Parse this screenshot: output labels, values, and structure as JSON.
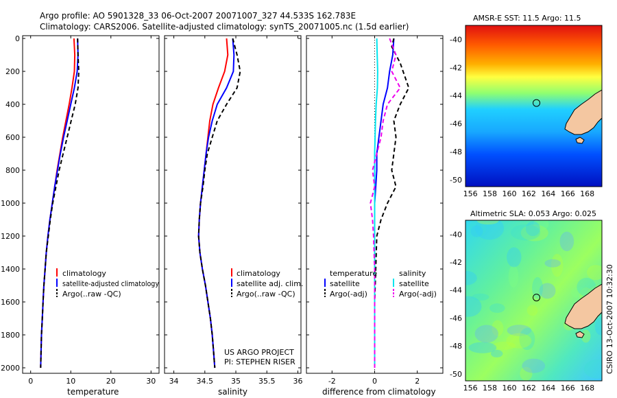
{
  "title_line1": "Argo profile: AO 5901328_33 06-Oct-2007 20071007_327 44.533S 162.783E",
  "title_line2": "Climatology: CARS2006. Satellite-adjusted climatology: synTS_20071005.nc (1.5d earlier)",
  "side_text": "CSIRO 13-Oct-2007 10:32:30",
  "project_line1": "US ARGO PROJECT",
  "project_line2": "PI: STEPHEN RISER",
  "colors": {
    "climatology": "#ff0000",
    "satellite": "#0000ff",
    "argo": "#000000",
    "sat_diff_sal": "#00e5ee",
    "argo_diff_sal": "#ee00ee"
  },
  "chart_data": [
    {
      "type": "line",
      "xlabel": "temperature",
      "ylim": [
        2000,
        0
      ],
      "xlim": [
        -2,
        32
      ],
      "xticks": [
        0,
        10,
        20,
        30
      ],
      "yticks": [
        0,
        200,
        400,
        600,
        800,
        1000,
        1200,
        1400,
        1600,
        1800,
        2000
      ],
      "legend": [
        "climatology",
        "satellite-adjusted climatology",
        "Argo(..raw -QC)"
      ],
      "series": [
        {
          "name": "climatology",
          "color": "#ff0000",
          "dash": "solid",
          "points": [
            [
              10.8,
              0
            ],
            [
              11.0,
              100
            ],
            [
              10.9,
              200
            ],
            [
              10.3,
              300
            ],
            [
              9.6,
              400
            ],
            [
              8.8,
              500
            ],
            [
              8.0,
              600
            ],
            [
              7.3,
              700
            ],
            [
              6.6,
              800
            ],
            [
              6.0,
              900
            ],
            [
              5.4,
              1000
            ],
            [
              4.8,
              1100
            ],
            [
              4.3,
              1200
            ],
            [
              3.9,
              1300
            ],
            [
              3.6,
              1400
            ],
            [
              3.3,
              1500
            ],
            [
              3.1,
              1600
            ],
            [
              2.9,
              1700
            ],
            [
              2.7,
              1800
            ],
            [
              2.6,
              1900
            ],
            [
              2.5,
              2000
            ]
          ]
        },
        {
          "name": "satellite-adjusted climatology",
          "color": "#0000ff",
          "dash": "solid",
          "points": [
            [
              11.7,
              0
            ],
            [
              11.8,
              100
            ],
            [
              11.6,
              200
            ],
            [
              10.9,
              300
            ],
            [
              10.0,
              400
            ],
            [
              9.1,
              500
            ],
            [
              8.2,
              600
            ],
            [
              7.4,
              700
            ],
            [
              6.7,
              800
            ],
            [
              6.0,
              900
            ],
            [
              5.4,
              1000
            ],
            [
              4.8,
              1100
            ],
            [
              4.3,
              1200
            ],
            [
              3.9,
              1300
            ],
            [
              3.6,
              1400
            ],
            [
              3.3,
              1500
            ],
            [
              3.1,
              1600
            ],
            [
              2.9,
              1700
            ],
            [
              2.7,
              1800
            ],
            [
              2.6,
              1900
            ],
            [
              2.5,
              2000
            ]
          ]
        },
        {
          "name": "Argo(..raw -QC)",
          "color": "#000000",
          "dash": "dashed",
          "points": [
            [
              11.7,
              0
            ],
            [
              11.8,
              100
            ],
            [
              12.0,
              200
            ],
            [
              11.8,
              300
            ],
            [
              11.1,
              400
            ],
            [
              10.1,
              500
            ],
            [
              9.1,
              600
            ],
            [
              8.1,
              700
            ],
            [
              7.1,
              800
            ],
            [
              6.3,
              900
            ],
            [
              5.5,
              1000
            ],
            [
              4.9,
              1100
            ],
            [
              4.4,
              1200
            ],
            [
              3.9,
              1300
            ],
            [
              3.6,
              1400
            ],
            [
              3.3,
              1500
            ],
            [
              3.1,
              1600
            ],
            [
              2.9,
              1700
            ],
            [
              2.7,
              1800
            ],
            [
              2.6,
              1900
            ],
            [
              2.5,
              2000
            ]
          ]
        }
      ]
    },
    {
      "type": "line",
      "xlabel": "salinity",
      "ylim": [
        2000,
        0
      ],
      "xlim": [
        33.85,
        36.05
      ],
      "xticks": [
        34,
        34.5,
        35,
        35.5,
        36
      ],
      "legend": [
        "climatology",
        "satellite adj. clim.",
        "Argo(..raw -QC)"
      ],
      "series": [
        {
          "name": "climatology",
          "color": "#ff0000",
          "dash": "solid",
          "points": [
            [
              34.85,
              0
            ],
            [
              34.87,
              100
            ],
            [
              34.82,
              200
            ],
            [
              34.72,
              300
            ],
            [
              34.63,
              400
            ],
            [
              34.58,
              500
            ],
            [
              34.55,
              600
            ],
            [
              34.52,
              700
            ],
            [
              34.49,
              800
            ],
            [
              34.46,
              900
            ],
            [
              34.43,
              1000
            ],
            [
              34.41,
              1100
            ],
            [
              34.4,
              1200
            ],
            [
              34.42,
              1300
            ],
            [
              34.46,
              1400
            ],
            [
              34.51,
              1500
            ],
            [
              34.55,
              1600
            ],
            [
              34.59,
              1700
            ],
            [
              34.62,
              1800
            ],
            [
              34.64,
              1900
            ],
            [
              34.66,
              2000
            ]
          ]
        },
        {
          "name": "satellite adj. clim.",
          "color": "#0000ff",
          "dash": "solid",
          "points": [
            [
              34.95,
              0
            ],
            [
              34.97,
              100
            ],
            [
              34.96,
              200
            ],
            [
              34.85,
              300
            ],
            [
              34.7,
              400
            ],
            [
              34.62,
              500
            ],
            [
              34.56,
              600
            ],
            [
              34.52,
              700
            ],
            [
              34.49,
              800
            ],
            [
              34.46,
              900
            ],
            [
              34.43,
              1000
            ],
            [
              34.41,
              1100
            ],
            [
              34.4,
              1200
            ],
            [
              34.42,
              1300
            ],
            [
              34.46,
              1400
            ],
            [
              34.51,
              1500
            ],
            [
              34.55,
              1600
            ],
            [
              34.59,
              1700
            ],
            [
              34.62,
              1800
            ],
            [
              34.64,
              1900
            ],
            [
              34.66,
              2000
            ]
          ]
        },
        {
          "name": "Argo(..raw -QC)",
          "color": "#000000",
          "dash": "dashed",
          "points": [
            [
              34.95,
              0
            ],
            [
              35.02,
              100
            ],
            [
              35.07,
              200
            ],
            [
              35.02,
              300
            ],
            [
              34.85,
              400
            ],
            [
              34.7,
              500
            ],
            [
              34.62,
              600
            ],
            [
              34.54,
              700
            ],
            [
              34.5,
              800
            ],
            [
              34.47,
              900
            ],
            [
              34.43,
              1000
            ],
            [
              34.41,
              1100
            ],
            [
              34.4,
              1200
            ],
            [
              34.42,
              1300
            ],
            [
              34.46,
              1400
            ],
            [
              34.51,
              1500
            ],
            [
              34.55,
              1600
            ],
            [
              34.59,
              1700
            ],
            [
              34.62,
              1800
            ],
            [
              34.64,
              1900
            ],
            [
              34.66,
              2000
            ]
          ]
        }
      ]
    },
    {
      "type": "line",
      "xlabel": "difference from climatology",
      "ylim": [
        2000,
        0
      ],
      "xlim": [
        -3.2,
        3.2
      ],
      "xticks": [
        -2,
        0,
        2
      ],
      "legend_temperature_header": "temperature",
      "legend_salinity_header": "salinity",
      "legend": [
        "satellite",
        "Argo(-adj)",
        "satellite",
        "Argo(-adj)"
      ],
      "series": [
        {
          "name": "satellite",
          "group": "temperature",
          "color": "#0000ff",
          "dash": "solid",
          "points": [
            [
              0.9,
              0
            ],
            [
              0.85,
              100
            ],
            [
              0.7,
              200
            ],
            [
              0.6,
              300
            ],
            [
              0.4,
              400
            ],
            [
              0.3,
              500
            ],
            [
              0.2,
              600
            ],
            [
              0.1,
              700
            ],
            [
              0.1,
              800
            ],
            [
              0.05,
              900
            ],
            [
              0.0,
              1000
            ],
            [
              0.0,
              1100
            ],
            [
              0.0,
              1200
            ],
            [
              0.0,
              1400
            ],
            [
              0.0,
              1600
            ],
            [
              0.0,
              1800
            ],
            [
              0.0,
              2000
            ]
          ]
        },
        {
          "name": "Argo(-adj)",
          "group": "temperature",
          "color": "#000000",
          "dash": "dashed",
          "points": [
            [
              0.9,
              0
            ],
            [
              0.8,
              50
            ],
            [
              1.2,
              150
            ],
            [
              1.6,
              300
            ],
            [
              1.2,
              400
            ],
            [
              0.9,
              500
            ],
            [
              1.0,
              600
            ],
            [
              0.9,
              700
            ],
            [
              0.8,
              800
            ],
            [
              1.0,
              900
            ],
            [
              0.6,
              1000
            ],
            [
              0.3,
              1100
            ],
            [
              0.1,
              1200
            ],
            [
              0.05,
              1400
            ],
            [
              0.0,
              1600
            ],
            [
              0.0,
              1800
            ],
            [
              0.0,
              2000
            ]
          ]
        },
        {
          "name": "satellite",
          "group": "salinity",
          "color": "#00e5ee",
          "dash": "solid",
          "points": [
            [
              0.1,
              0
            ],
            [
              0.12,
              100
            ],
            [
              0.14,
              200
            ],
            [
              0.13,
              300
            ],
            [
              0.07,
              400
            ],
            [
              0.04,
              500
            ],
            [
              0.02,
              600
            ],
            [
              0.0,
              700
            ],
            [
              0.0,
              900
            ],
            [
              0.0,
              1200
            ],
            [
              0.0,
              1600
            ],
            [
              0.0,
              2000
            ]
          ]
        },
        {
          "name": "Argo(-adj)",
          "group": "salinity",
          "color": "#ee00ee",
          "dash": "dashed",
          "points": [
            [
              0.7,
              0
            ],
            [
              1.0,
              100
            ],
            [
              0.8,
              200
            ],
            [
              1.2,
              300
            ],
            [
              0.6,
              400
            ],
            [
              0.4,
              500
            ],
            [
              0.3,
              600
            ],
            [
              0.1,
              700
            ],
            [
              -0.1,
              800
            ],
            [
              0.0,
              900
            ],
            [
              -0.2,
              1000
            ],
            [
              -0.1,
              1100
            ],
            [
              -0.05,
              1200
            ],
            [
              0.0,
              1400
            ],
            [
              0.0,
              1600
            ],
            [
              0.0,
              1800
            ],
            [
              0.0,
              2000
            ]
          ]
        }
      ]
    },
    {
      "type": "heatmap",
      "title": "AMSR-E SST: 11.5 Argo: 11.5",
      "xlim": [
        155.5,
        169.5
      ],
      "ylim": [
        -50.5,
        -39
      ],
      "xticks": [
        156,
        158,
        160,
        162,
        164,
        166,
        168
      ],
      "yticks": [
        -40,
        -42,
        -44,
        -46,
        -48,
        -50
      ],
      "marker": {
        "lon": 162.783,
        "lat": -44.533
      }
    },
    {
      "type": "heatmap",
      "title": "Altimetric SLA: 0.053 Argo: 0.025",
      "xlim": [
        155.5,
        169.5
      ],
      "ylim": [
        -50.5,
        -39
      ],
      "xticks": [
        156,
        158,
        160,
        162,
        164,
        166,
        168
      ],
      "yticks": [
        -40,
        -42,
        -44,
        -46,
        -48,
        -50
      ],
      "marker": {
        "lon": 162.783,
        "lat": -44.533
      }
    }
  ]
}
